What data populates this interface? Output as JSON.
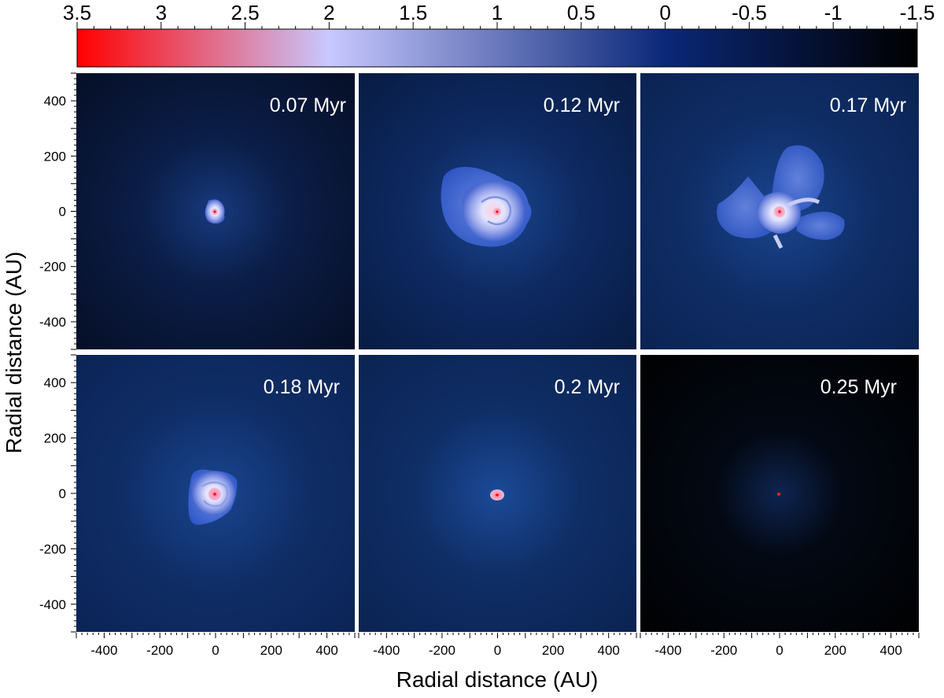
{
  "colorbar": {
    "tick_labels": [
      "3.5",
      "3",
      "2.5",
      "2",
      "1.5",
      "1",
      "0.5",
      "0",
      "-0.5",
      "-1",
      "-1.5"
    ],
    "range": [
      3.5,
      -1.5
    ],
    "colors": [
      "#ff0000",
      "#c8c8ff",
      "#0a2878",
      "#000000"
    ]
  },
  "axes": {
    "xlabel": "Radial distance (AU)",
    "ylabel": "Radial distance (AU)",
    "x_tick_labels": [
      "-400",
      "-200",
      "0",
      "200",
      "400"
    ],
    "y_tick_labels": [
      "400",
      "200",
      "0",
      "-200",
      "-400"
    ],
    "range": [
      -500,
      500
    ]
  },
  "panels": [
    {
      "label": "0.07 Myr"
    },
    {
      "label": "0.12 Myr"
    },
    {
      "label": "0.17 Myr"
    },
    {
      "label": "0.18 Myr"
    },
    {
      "label": "0.2 Myr"
    },
    {
      "label": "0.25 Myr"
    }
  ]
}
